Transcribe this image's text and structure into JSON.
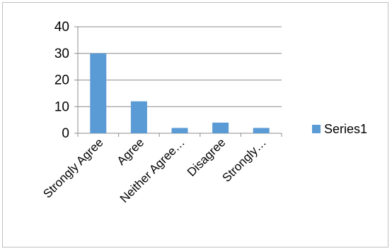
{
  "chart_data": {
    "type": "bar",
    "categories": [
      "Strongly Agree",
      "Agree",
      "Neither Agree…",
      "Disagree",
      "Strongly…"
    ],
    "series": [
      {
        "name": "Series1",
        "values": [
          30,
          12,
          2,
          4,
          2
        ],
        "color": "#5b9bd5"
      }
    ],
    "ylim": [
      0,
      40
    ],
    "yticks": [
      0,
      10,
      20,
      30,
      40
    ],
    "grid": true,
    "legend_position": "right",
    "title": "",
    "xlabel": "",
    "ylabel": ""
  }
}
